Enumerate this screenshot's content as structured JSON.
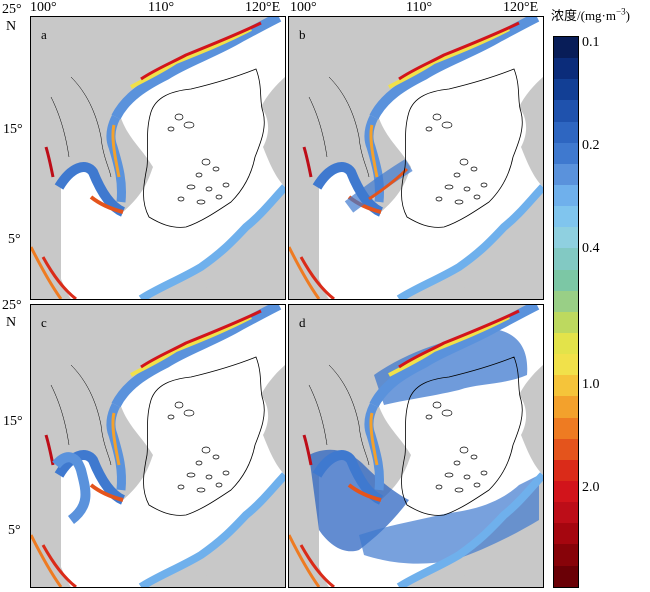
{
  "panels": [
    {
      "label": "a"
    },
    {
      "label": "b"
    },
    {
      "label": "c"
    },
    {
      "label": "d"
    }
  ],
  "top_axis": {
    "left_ticks": [
      "100°",
      "110°",
      "120°E"
    ],
    "right_ticks": [
      "100°",
      "110°",
      "120°E"
    ]
  },
  "left_axis": {
    "top_ticks": [
      "25°",
      "N",
      "15°",
      "5°"
    ],
    "bottom_ticks": [
      "25°",
      "N",
      "15°",
      "5°"
    ]
  },
  "colorbar": {
    "title_main": "浓度/(mg·m",
    "title_exp": "−3",
    "title_end": ")",
    "tick_labels": [
      "0.1",
      "0.2",
      "0.4",
      "1.0",
      "2.0"
    ],
    "colors": [
      "#081d58",
      "#0b2c7a",
      "#123f95",
      "#1f52ad",
      "#2e66c1",
      "#3f79cf",
      "#5a92dc",
      "#6fb0ec",
      "#80c5ee",
      "#8fd0e0",
      "#82c9c3",
      "#7cc7a5",
      "#99cf86",
      "#bdd95f",
      "#e3e34a",
      "#f1e14a",
      "#f5c43a",
      "#f3a12c",
      "#ee7b22",
      "#e4541c",
      "#da2b19",
      "#d2141b",
      "#bd0d18",
      "#a5060f",
      "#870309",
      "#6a0006"
    ]
  }
}
